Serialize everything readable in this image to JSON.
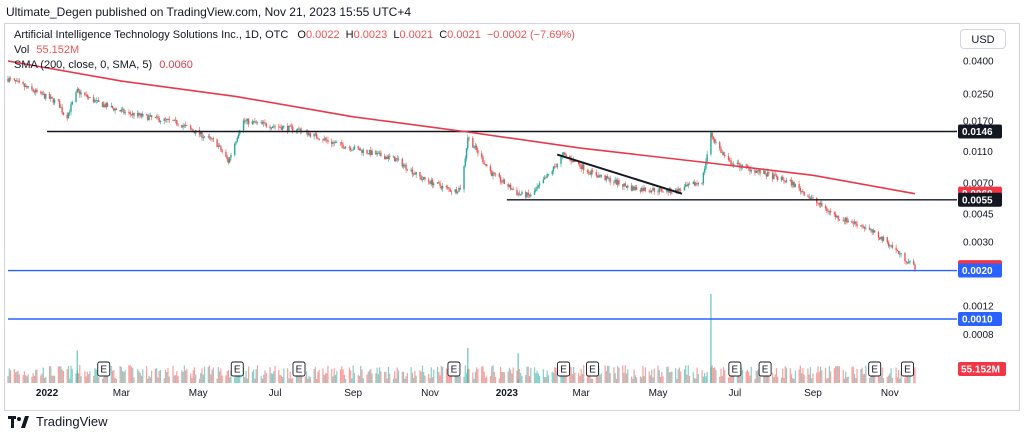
{
  "header": {
    "publish_text": "Ultimate_Degen published on TradingView.com, Nov 21, 2023 15:55 UTC+4"
  },
  "legend": {
    "symbol_line": "Artificial Intelligence Technology Solutions Inc., 1D, OTC",
    "ohlc": {
      "o_label": "O",
      "o": "0.0022",
      "h_label": "H",
      "h": "0.0023",
      "l_label": "L",
      "l": "0.0021",
      "c_label": "C",
      "c": "0.0021",
      "change": "−0.0002 (−7.69%)"
    },
    "vol_label": "Vol",
    "vol_value": "55.152M",
    "sma_label": "SMA (200, close, 0, SMA, 5)",
    "sma_value": "0.0060"
  },
  "currency": "USD",
  "footer": {
    "brand": "TradingView"
  },
  "colors": {
    "up": "#26a69a",
    "down": "#ef5350",
    "sma": "#e8394b",
    "level_black": "#131722",
    "level_blue": "#2962ff",
    "price_tag_red": "#f23645",
    "grid_border": "#d1d4dc"
  },
  "chart_data": {
    "type": "candlestick",
    "price_scale": "log",
    "y_ticks": [
      "0.0400",
      "0.0250",
      "0.0170",
      "0.0110",
      "0.0070",
      "0.0045",
      "0.0030",
      "0.0012",
      "0.0008"
    ],
    "price_tags": [
      {
        "label": "0.0146",
        "value": 0.0146,
        "style": "black"
      },
      {
        "label": "0.0060",
        "value": 0.006,
        "style": "red"
      },
      {
        "label": "0.0055",
        "value": 0.0055,
        "style": "black"
      },
      {
        "label": "0.0021",
        "value": 0.0021,
        "style": "red"
      },
      {
        "label": "0.0020",
        "value": 0.002,
        "style": "blue"
      },
      {
        "label": "0.0010",
        "value": 0.001,
        "style": "blue"
      }
    ],
    "volume_tag": "55.152M",
    "x_ticks": [
      "2022",
      "Mar",
      "May",
      "Jul",
      "Sep",
      "Nov",
      "2023",
      "Mar",
      "May",
      "Jul",
      "Sep",
      "Nov"
    ],
    "x_tick_bold": [
      true,
      false,
      false,
      false,
      false,
      false,
      true,
      false,
      false,
      false,
      false,
      false
    ],
    "horizontal_levels": [
      {
        "value": 0.0146,
        "color": "black",
        "from": "2022-01",
        "to": "2023-11"
      },
      {
        "value": 0.0055,
        "color": "black",
        "from": "2023-01",
        "to": "2023-11"
      },
      {
        "value": 0.002,
        "color": "blue",
        "from": "2021-12",
        "to": "2023-11"
      },
      {
        "value": 0.001,
        "color": "blue",
        "from": "2021-12",
        "to": "2023-11"
      }
    ],
    "trendline": {
      "from": {
        "date": "2023-02-10",
        "value": 0.0105
      },
      "to": {
        "date": "2023-05-20",
        "value": 0.006
      }
    },
    "price_path": [
      {
        "date": "2021-12-01",
        "value": 0.031
      },
      {
        "date": "2022-01-10",
        "value": 0.022
      },
      {
        "date": "2022-01-16",
        "value": 0.0175
      },
      {
        "date": "2022-01-25",
        "value": 0.026
      },
      {
        "date": "2022-02-10",
        "value": 0.022
      },
      {
        "date": "2022-03-05",
        "value": 0.019
      },
      {
        "date": "2022-04-15",
        "value": 0.0165
      },
      {
        "date": "2022-05-15",
        "value": 0.0125
      },
      {
        "date": "2022-05-25",
        "value": 0.0095
      },
      {
        "date": "2022-06-05",
        "value": 0.017
      },
      {
        "date": "2022-06-25",
        "value": 0.016
      },
      {
        "date": "2022-07-20",
        "value": 0.015
      },
      {
        "date": "2022-08-15",
        "value": 0.0125
      },
      {
        "date": "2022-09-10",
        "value": 0.011
      },
      {
        "date": "2022-10-05",
        "value": 0.0098
      },
      {
        "date": "2022-10-25",
        "value": 0.0075
      },
      {
        "date": "2022-11-20",
        "value": 0.0062
      },
      {
        "date": "2022-11-26",
        "value": 0.0066
      },
      {
        "date": "2022-12-01",
        "value": 0.0135
      },
      {
        "date": "2022-12-20",
        "value": 0.008
      },
      {
        "date": "2023-01-10",
        "value": 0.006
      },
      {
        "date": "2023-01-20",
        "value": 0.0058
      },
      {
        "date": "2023-02-05",
        "value": 0.0082
      },
      {
        "date": "2023-02-15",
        "value": 0.0105
      },
      {
        "date": "2023-03-10",
        "value": 0.008
      },
      {
        "date": "2023-04-10",
        "value": 0.0065
      },
      {
        "date": "2023-05-15",
        "value": 0.0062
      },
      {
        "date": "2023-06-05",
        "value": 0.0072
      },
      {
        "date": "2023-06-12",
        "value": 0.014
      },
      {
        "date": "2023-06-25",
        "value": 0.0095
      },
      {
        "date": "2023-07-20",
        "value": 0.0082
      },
      {
        "date": "2023-08-15",
        "value": 0.007
      },
      {
        "date": "2023-09-01",
        "value": 0.0055
      },
      {
        "date": "2023-09-20",
        "value": 0.0043
      },
      {
        "date": "2023-10-10",
        "value": 0.0038
      },
      {
        "date": "2023-10-30",
        "value": 0.003
      },
      {
        "date": "2023-11-12",
        "value": 0.0024
      },
      {
        "date": "2023-11-21",
        "value": 0.0021
      }
    ],
    "sma200_path": [
      {
        "date": "2021-12-01",
        "value": 0.04
      },
      {
        "date": "2022-03-01",
        "value": 0.03
      },
      {
        "date": "2022-06-01",
        "value": 0.024
      },
      {
        "date": "2022-09-01",
        "value": 0.018
      },
      {
        "date": "2022-12-01",
        "value": 0.0145
      },
      {
        "date": "2023-03-01",
        "value": 0.0115
      },
      {
        "date": "2023-06-01",
        "value": 0.0095
      },
      {
        "date": "2023-09-01",
        "value": 0.0078
      },
      {
        "date": "2023-11-21",
        "value": 0.006
      }
    ],
    "earnings_markers": [
      "2022-02-15",
      "2022-06-01",
      "2022-07-20",
      "2022-11-20",
      "2023-02-15",
      "2023-03-10",
      "2023-07-01",
      "2023-07-25",
      "2023-10-20",
      "2023-11-15"
    ],
    "volume_spikes": [
      {
        "date": "2023-06-12",
        "value": 330
      },
      {
        "date": "2022-12-01",
        "value": 130
      },
      {
        "date": "2023-01-10",
        "value": 110
      },
      {
        "date": "2022-01-25",
        "value": 120
      }
    ]
  }
}
